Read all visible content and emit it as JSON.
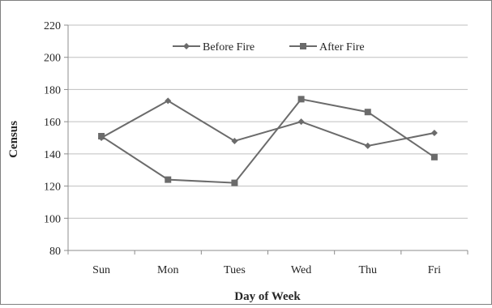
{
  "chart_data": {
    "type": "line",
    "title": "",
    "xlabel": "Day of Week",
    "ylabel": "Census",
    "categories": [
      "Sun",
      "Mon",
      "Tues",
      "Wed",
      "Thu",
      "Fri"
    ],
    "ylim": [
      80,
      220
    ],
    "yticks": [
      80,
      100,
      120,
      140,
      160,
      180,
      200,
      220
    ],
    "grid": "horizontal",
    "legend_position": "top",
    "series": [
      {
        "name": "Before Fire",
        "marker": "diamond",
        "color": "#6b6b6b",
        "values": [
          150,
          173,
          148,
          160,
          145,
          153
        ]
      },
      {
        "name": "After Fire",
        "marker": "square",
        "color": "#6b6b6b",
        "values": [
          151,
          124,
          122,
          174,
          166,
          138
        ]
      }
    ]
  }
}
